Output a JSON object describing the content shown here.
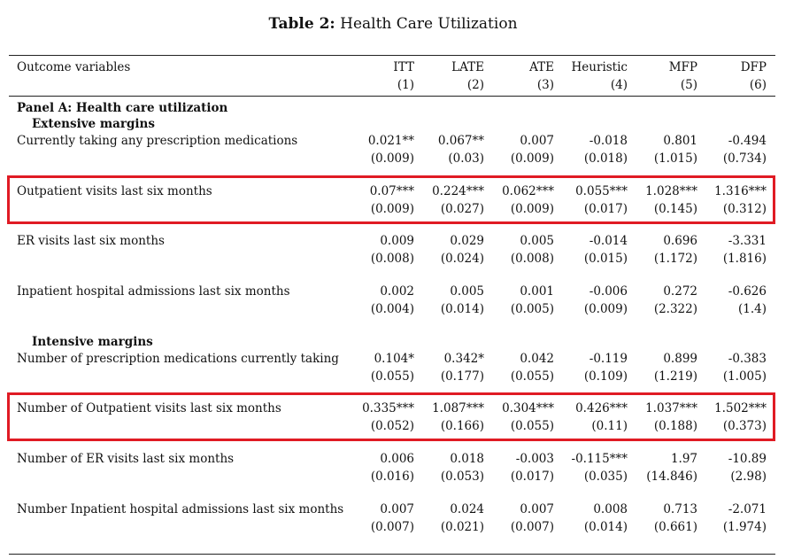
{
  "caption": {
    "label": "Table 2:",
    "title": "Health Care Utilization"
  },
  "header": {
    "stub": "Outcome variables",
    "columns": [
      {
        "name": "ITT",
        "number": "(1)"
      },
      {
        "name": "LATE",
        "number": "(2)"
      },
      {
        "name": "ATE",
        "number": "(3)"
      },
      {
        "name": "Heuristic",
        "number": "(4)"
      },
      {
        "name": "MFP",
        "number": "(5)"
      },
      {
        "name": "DFP",
        "number": "(6)"
      }
    ]
  },
  "panel_a": {
    "title": "Panel A: Health care utilization",
    "extensive": "Extensive margins",
    "intensive": "Intensive margins"
  },
  "rows": [
    {
      "label": "Currently taking any prescription medications",
      "coef": [
        "0.021**",
        "0.067**",
        "0.007",
        "-0.018",
        "0.801",
        "-0.494"
      ],
      "se": [
        "(0.009)",
        "(0.03)",
        "(0.009)",
        "(0.018)",
        "(1.015)",
        "(0.734)"
      ],
      "highlighted": false
    },
    {
      "label": "Outpatient visits last six months",
      "coef": [
        "0.07***",
        "0.224***",
        "0.062***",
        "0.055***",
        "1.028***",
        "1.316***"
      ],
      "se": [
        "(0.009)",
        "(0.027)",
        "(0.009)",
        "(0.017)",
        "(0.145)",
        "(0.312)"
      ],
      "highlighted": true
    },
    {
      "label": "ER visits last six months",
      "coef": [
        "0.009",
        "0.029",
        "0.005",
        "-0.014",
        "0.696",
        "-3.331"
      ],
      "se": [
        "(0.008)",
        "(0.024)",
        "(0.008)",
        "(0.015)",
        "(1.172)",
        "(1.816)"
      ],
      "highlighted": false
    },
    {
      "label": "Inpatient hospital admissions last six months",
      "coef": [
        "0.002",
        "0.005",
        "0.001",
        "-0.006",
        "0.272",
        "-0.626"
      ],
      "se": [
        "(0.004)",
        "(0.014)",
        "(0.005)",
        "(0.009)",
        "(2.322)",
        "(1.4)"
      ],
      "highlighted": false
    },
    {
      "label": "Number of prescription medications currently taking",
      "coef": [
        "0.104*",
        "0.342*",
        "0.042",
        "-0.119",
        "0.899",
        "-0.383"
      ],
      "se": [
        "(0.055)",
        "(0.177)",
        "(0.055)",
        "(0.109)",
        "(1.219)",
        "(1.005)"
      ],
      "highlighted": false
    },
    {
      "label": "Number of Outpatient visits last six months",
      "coef": [
        "0.335***",
        "1.087***",
        "0.304***",
        "0.426***",
        "1.037***",
        "1.502***"
      ],
      "se": [
        "(0.052)",
        "(0.166)",
        "(0.055)",
        "(0.11)",
        "(0.188)",
        "(0.373)"
      ],
      "highlighted": true
    },
    {
      "label": "Number of ER visits last six months",
      "coef": [
        "0.006",
        "0.018",
        "-0.003",
        "-0.115***",
        "1.97",
        "-10.89"
      ],
      "se": [
        "(0.016)",
        "(0.053)",
        "(0.017)",
        "(0.035)",
        "(14.846)",
        "(2.98)"
      ],
      "highlighted": false
    },
    {
      "label": "Number Inpatient hospital admissions last six months",
      "coef": [
        "0.007",
        "0.024",
        "0.007",
        "0.008",
        "0.713",
        "-2.071"
      ],
      "se": [
        "(0.007)",
        "(0.021)",
        "(0.007)",
        "(0.014)",
        "(0.661)",
        "(1.974)"
      ],
      "highlighted": false
    }
  ],
  "highlight_color": "#e01b24"
}
